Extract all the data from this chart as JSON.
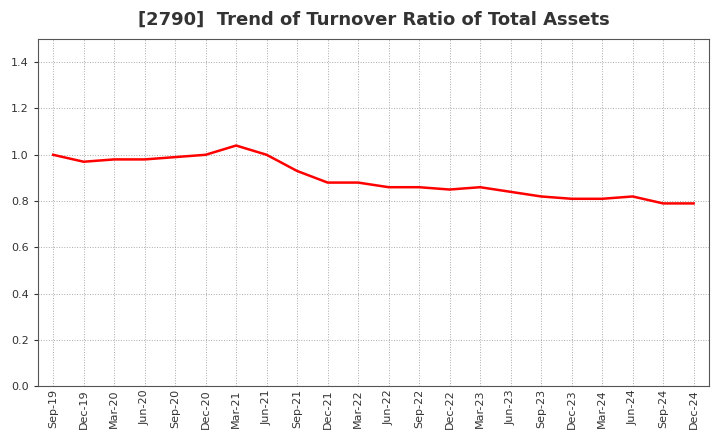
{
  "title": "[2790]  Trend of Turnover Ratio of Total Assets",
  "line_color": "#FF0000",
  "line_width": 1.8,
  "background_color": "#FFFFFF",
  "plot_bg_color": "#FFFFFF",
  "grid_color": "#AAAAAA",
  "ylim": [
    0.0,
    1.5
  ],
  "yticks": [
    0.0,
    0.2,
    0.4,
    0.6,
    0.8,
    1.0,
    1.2,
    1.4
  ],
  "x_labels": [
    "Sep-19",
    "Dec-19",
    "Mar-20",
    "Jun-20",
    "Sep-20",
    "Dec-20",
    "Mar-21",
    "Jun-21",
    "Sep-21",
    "Dec-21",
    "Mar-22",
    "Jun-22",
    "Sep-22",
    "Dec-22",
    "Mar-23",
    "Jun-23",
    "Sep-23",
    "Dec-23",
    "Mar-24",
    "Jun-24",
    "Sep-24",
    "Dec-24"
  ],
  "values": [
    1.0,
    0.97,
    0.98,
    0.98,
    0.99,
    1.0,
    1.04,
    1.0,
    0.93,
    0.88,
    0.88,
    0.86,
    0.86,
    0.85,
    0.86,
    0.84,
    0.82,
    0.81,
    0.81,
    0.82,
    0.79,
    0.79
  ],
  "title_fontsize": 13,
  "tick_fontsize": 8,
  "tick_color": "#333333",
  "spine_color": "#555555",
  "title_color": "#333333"
}
